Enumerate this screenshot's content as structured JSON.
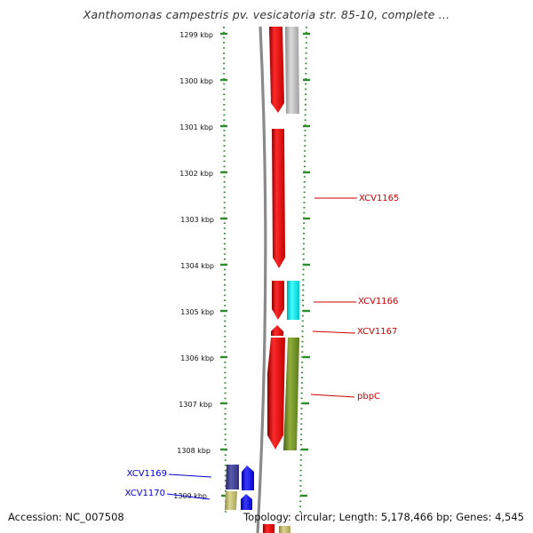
{
  "title": "Xanthomonas campestris pv. vesicatoria str. 85-10, complete ...",
  "kbp_labels": [
    "1299 kbp",
    "1300 kbp",
    "1301 kbp",
    "1302 kbp",
    "1303 kbp",
    "1304 kbp",
    "1305 kbp",
    "1306 kbp",
    "1307 kbp",
    "1308 kbp",
    "1309 kbp"
  ],
  "gene_labels": [
    {
      "name": "XCV1165",
      "color": "#cc0000"
    },
    {
      "name": "XCV1166",
      "color": "#cc0000"
    },
    {
      "name": "XCV1167",
      "color": "#cc0000"
    },
    {
      "name": "pbpC",
      "color": "#cc0000"
    },
    {
      "name": "XCV1169",
      "color": "#0000cc"
    },
    {
      "name": "XCV1170",
      "color": "#0000cc"
    }
  ],
  "colors": {
    "cds_red": "#ee0000",
    "grey_feature": "#b8b8b8",
    "cyan_feature": "#00e5ee",
    "olive_feature": "#6b8e23",
    "navy_feature": "#3d3d8f",
    "blue_feature": "#0000ee",
    "khaki_feature": "#bdb76b",
    "tick_green": "#2e8b2e",
    "backbone": "#888888"
  },
  "footer": {
    "accession": "Accession: NC_007508",
    "summary": "Topology: circular; Length: 5,178,466 bp; Genes: 4,545"
  }
}
